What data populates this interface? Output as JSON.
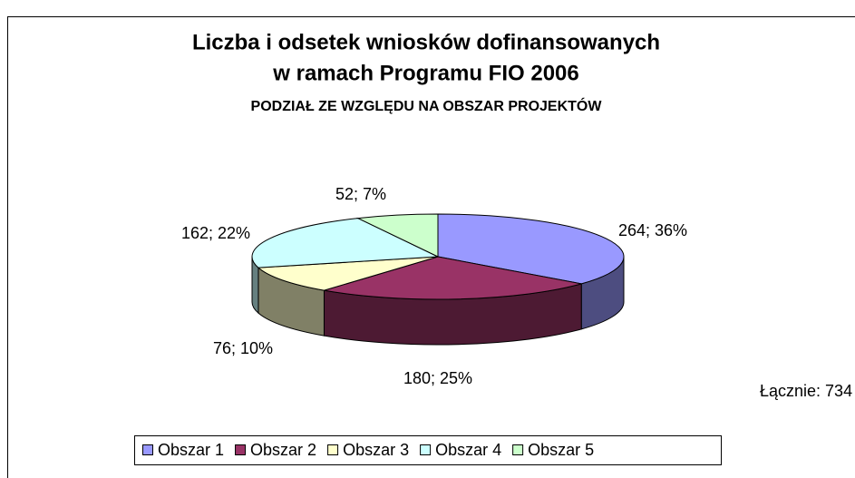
{
  "chart_data": {
    "type": "pie3d",
    "title": "Liczba i odsetek wniosków dofinansowanych",
    "title2": "w ramach Programu FIO 2006",
    "subtitle": "PODZIAŁ ZE WZGLĘDU NA OBSZAR PROJEKTÓW",
    "categories": [
      "Obszar 1",
      "Obszar 2",
      "Obszar 3",
      "Obszar 4",
      "Obszar 5"
    ],
    "values": [
      264,
      180,
      76,
      162,
      52
    ],
    "value_labels": [
      "264; 36%",
      "180; 25%",
      "76; 10%",
      "162; 22%",
      "52; 7%"
    ],
    "colors": [
      "#9999ff",
      "#993366",
      "#ffffcc",
      "#ccffff",
      "#ccffcc"
    ],
    "annotation": "Łącznie: 734",
    "legend": "bottom"
  }
}
